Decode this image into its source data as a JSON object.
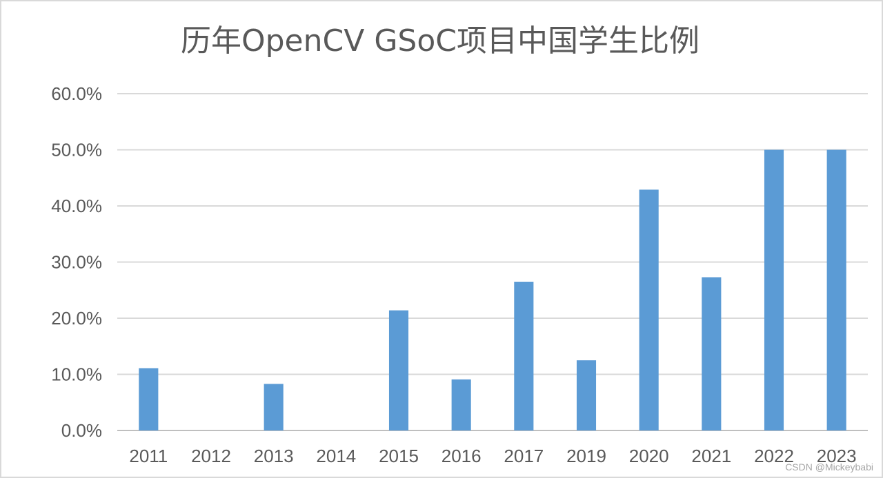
{
  "chart_data": {
    "type": "bar",
    "title": "历年OpenCV GSoC项目中国学生比例",
    "xlabel": "",
    "ylabel": "",
    "categories": [
      "2011",
      "2012",
      "2013",
      "2014",
      "2015",
      "2016",
      "2017",
      "2019",
      "2020",
      "2021",
      "2022",
      "2023"
    ],
    "values": [
      11.1,
      0.0,
      8.3,
      0.0,
      21.4,
      9.1,
      26.5,
      12.5,
      42.9,
      27.3,
      50.0,
      50.0
    ],
    "ylim": [
      0,
      60
    ],
    "yticks": [
      0,
      10,
      20,
      30,
      40,
      50,
      60
    ],
    "ytick_labels": [
      "0.0%",
      "10.0%",
      "20.0%",
      "30.0%",
      "40.0%",
      "50.0%",
      "60.0%"
    ],
    "grid": true,
    "legend": "none",
    "bar_color": "#5b9bd5"
  },
  "watermark": "CSDN @Mickeybabi"
}
